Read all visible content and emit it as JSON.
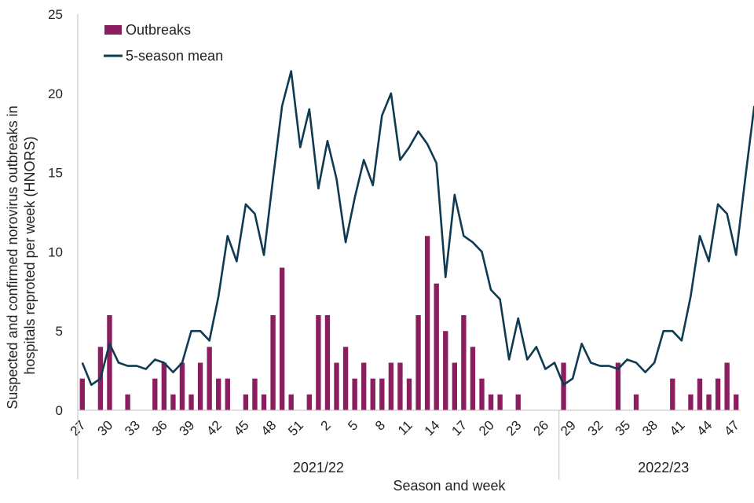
{
  "chart_data": {
    "type": "bar",
    "ylabel_lines": [
      "Suspected and confirmed norovirus outbreaks in",
      "hospitals  reproted per week (HNORS)"
    ],
    "xlabel": "Season and week",
    "ylim": [
      0,
      25
    ],
    "y_ticks": [
      "0",
      "5",
      "10",
      "15",
      "20",
      "25"
    ],
    "x_tick_labels": [
      "27",
      "30",
      "33",
      "36",
      "39",
      "42",
      "45",
      "48",
      "51",
      "2",
      "5",
      "8",
      "11",
      "14",
      "17",
      "20",
      "23",
      "26",
      "29",
      "32",
      "35",
      "38",
      "41",
      "44",
      "47"
    ],
    "seasons": [
      {
        "label": "2021/22",
        "first_index": 0,
        "last_index": 52
      },
      {
        "label": "2022/23",
        "first_index": 53,
        "last_index": 75
      }
    ],
    "legend": {
      "position": "top-left"
    },
    "series": [
      {
        "name": "Outbreaks",
        "type": "bar",
        "color": "#8B1E5E",
        "values": [
          2,
          0,
          4,
          6,
          0,
          1,
          0,
          0,
          2,
          3,
          1,
          3,
          1,
          3,
          4,
          2,
          2,
          0,
          1,
          2,
          1,
          6,
          9,
          1,
          0,
          1,
          6,
          6,
          3,
          4,
          2,
          3,
          2,
          2,
          3,
          3,
          2,
          6,
          11,
          8,
          5,
          3,
          6,
          4,
          2,
          1,
          1,
          0,
          1,
          0,
          0,
          0,
          0,
          3,
          0,
          0,
          0,
          0,
          0,
          3,
          0,
          1,
          0,
          0,
          0,
          2,
          0,
          1,
          2,
          1,
          2,
          3,
          1
        ]
      },
      {
        "name": "5-season mean",
        "type": "line",
        "color": "#0E3A52",
        "values": [
          3,
          1.6,
          2,
          4.2,
          3,
          2.8,
          2.8,
          2.6,
          3.2,
          3,
          2.4,
          3,
          5,
          5,
          4.4,
          7.2,
          11,
          9.4,
          13,
          12.4,
          9.8,
          14.6,
          19.2,
          21.4,
          16.6,
          19,
          14,
          17,
          14.6,
          10.6,
          13.4,
          15.8,
          14.2,
          18.6,
          20,
          15.8,
          16.6,
          17.6,
          16.8,
          15.6,
          8.4,
          13.6,
          11,
          10.6,
          10,
          7.6,
          7,
          3.2,
          5.8,
          3.2,
          4,
          2.6,
          3,
          1.6,
          2,
          4.2,
          3,
          2.8,
          2.8,
          2.6,
          3.2,
          3,
          2.4,
          3,
          5,
          5,
          4.4,
          7.2,
          11,
          9.4,
          13,
          12.4,
          9.8,
          14.6,
          19.2
        ]
      }
    ]
  }
}
